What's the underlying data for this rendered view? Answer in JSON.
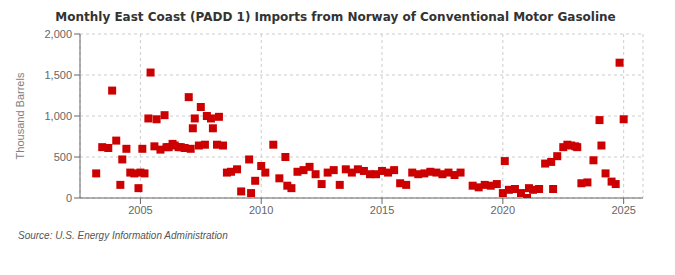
{
  "chart_data": {
    "type": "scatter",
    "title": "Monthly East Coast (PADD 1) Imports from Norway of Conventional Motor Gasoline",
    "ylabel": "Thousand Barrels",
    "annotations": [
      "Source: U.S. Energy Information Administration"
    ],
    "color": "#cc0000",
    "marker": "square",
    "grid": true,
    "xlim": [
      2002.5,
      2025.8
    ],
    "xticks": [
      2005,
      2010,
      2015,
      2020,
      2025
    ],
    "ylim": [
      0,
      2000
    ],
    "yticks": [
      0,
      500,
      {
        "value": 1000,
        "label": "1,000"
      },
      {
        "value": 1500,
        "label": "1,500"
      },
      {
        "value": 2000,
        "label": "2,000"
      }
    ],
    "x": [
      2003.17,
      2003.42,
      2003.67,
      2003.83,
      2004.0,
      2004.17,
      2004.25,
      2004.42,
      2004.58,
      2004.75,
      2004.92,
      2005.0,
      2005.08,
      2005.17,
      2005.33,
      2005.42,
      2005.58,
      2005.67,
      2005.83,
      2006.0,
      2006.08,
      2006.17,
      2006.33,
      2006.42,
      2006.58,
      2006.67,
      2006.83,
      2007.0,
      2007.08,
      2007.17,
      2007.25,
      2007.42,
      2007.5,
      2007.67,
      2007.75,
      2007.92,
      2008.0,
      2008.17,
      2008.25,
      2008.42,
      2008.58,
      2008.75,
      2009.0,
      2009.17,
      2009.5,
      2009.58,
      2009.75,
      2010.0,
      2010.17,
      2010.5,
      2010.75,
      2011.0,
      2011.08,
      2011.25,
      2011.5,
      2011.75,
      2012.0,
      2012.25,
      2012.5,
      2012.75,
      2013.0,
      2013.25,
      2013.5,
      2013.75,
      2014.0,
      2014.25,
      2014.5,
      2014.75,
      2015.0,
      2015.25,
      2015.5,
      2015.75,
      2016.0,
      2016.25,
      2016.5,
      2016.75,
      2017.0,
      2017.25,
      2017.5,
      2017.75,
      2018.0,
      2018.25,
      2018.75,
      2019.0,
      2019.25,
      2019.5,
      2019.75,
      2020.0,
      2020.08,
      2020.25,
      2020.5,
      2020.75,
      2021.0,
      2021.08,
      2021.25,
      2021.5,
      2021.75,
      2022.0,
      2022.08,
      2022.25,
      2022.5,
      2022.67,
      2022.83,
      2023.0,
      2023.08,
      2023.25,
      2023.5,
      2023.75,
      2024.0,
      2024.08,
      2024.25,
      2024.5,
      2024.67,
      2024.83,
      2025.0
    ],
    "values": [
      300,
      620,
      610,
      1310,
      700,
      160,
      470,
      600,
      310,
      300,
      120,
      310,
      600,
      300,
      970,
      1530,
      630,
      960,
      590,
      1010,
      620,
      620,
      660,
      640,
      620,
      620,
      610,
      1230,
      600,
      850,
      970,
      640,
      1110,
      650,
      1000,
      970,
      850,
      650,
      990,
      640,
      310,
      320,
      350,
      80,
      470,
      60,
      210,
      390,
      310,
      650,
      240,
      500,
      150,
      120,
      320,
      340,
      380,
      290,
      170,
      310,
      340,
      160,
      350,
      310,
      350,
      330,
      290,
      290,
      330,
      310,
      340,
      180,
      160,
      310,
      290,
      300,
      320,
      310,
      290,
      310,
      280,
      310,
      150,
      130,
      160,
      150,
      170,
      60,
      450,
      100,
      110,
      60,
      0,
      120,
      100,
      110,
      420,
      440,
      110,
      510,
      620,
      650,
      640,
      630,
      620,
      180,
      190,
      460,
      950,
      640,
      300,
      200,
      170,
      1650,
      960
    ]
  }
}
